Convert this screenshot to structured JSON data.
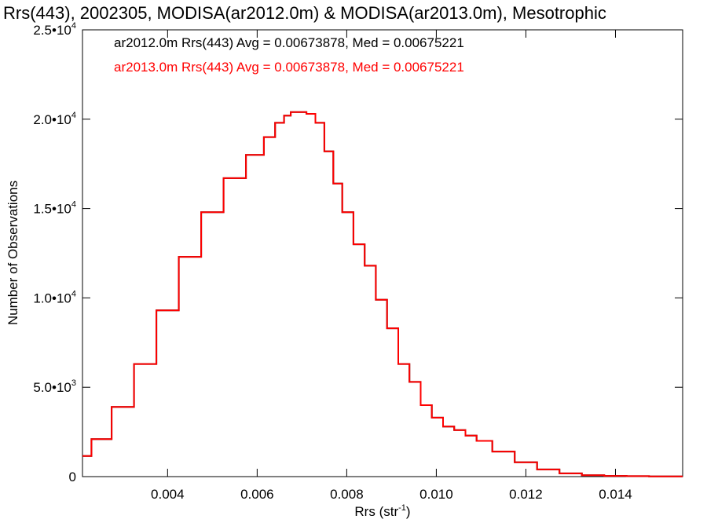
{
  "chart_data": {
    "type": "line",
    "title": "Rrs(443), 2002305, MODISA(ar2012.0m) & MODISA(ar2013.0m), Mesotrophic",
    "xlabel": {
      "base": "Rrs (str",
      "exp": "-1",
      "close": ")"
    },
    "ylabel": "Number of Observations",
    "xlim": [
      0.0021,
      0.0155
    ],
    "ylim": [
      0,
      25000
    ],
    "x_ticks": [
      {
        "value": 0.004,
        "label": "0.004"
      },
      {
        "value": 0.006,
        "label": "0.006"
      },
      {
        "value": 0.008,
        "label": "0.008"
      },
      {
        "value": 0.01,
        "label": "0.010"
      },
      {
        "value": 0.012,
        "label": "0.012"
      },
      {
        "value": 0.014,
        "label": "0.014"
      }
    ],
    "y_ticks": [
      {
        "value": 0,
        "mant": "0",
        "exp": ""
      },
      {
        "value": 5000,
        "mant": "5.0•10",
        "exp": "3"
      },
      {
        "value": 10000,
        "mant": "1.0•10",
        "exp": "4"
      },
      {
        "value": 15000,
        "mant": "1.5•10",
        "exp": "4"
      },
      {
        "value": 20000,
        "mant": "2.0•10",
        "exp": "4"
      },
      {
        "value": 25000,
        "mant": "2.5•10",
        "exp": "4"
      }
    ],
    "legend": [
      {
        "text": "ar2012.0m Rrs(443) Avg = 0.00673878, Med = 0.00675221",
        "color": "#000000"
      },
      {
        "text": "ar2013.0m Rrs(443) Avg = 0.00673878, Med = 0.00675221",
        "color": "#ff0000"
      }
    ],
    "series": [
      {
        "name": "ar2012.0m",
        "color": "#000000",
        "x": [
          0.0021,
          0.0025,
          0.003,
          0.0035,
          0.004,
          0.0045,
          0.005,
          0.0055,
          0.006,
          0.0063,
          0.0065,
          0.0067,
          0.0068,
          0.007,
          0.0072,
          0.0074,
          0.0076,
          0.0078,
          0.008,
          0.0083,
          0.0085,
          0.0088,
          0.009,
          0.0093,
          0.0095,
          0.0098,
          0.01,
          0.0103,
          0.0105,
          0.0108,
          0.011,
          0.0115,
          0.012,
          0.0125,
          0.013,
          0.0135,
          0.014,
          0.0145,
          0.015,
          0.0155
        ],
        "y": [
          1150,
          2100,
          3900,
          6300,
          9300,
          12300,
          14800,
          16700,
          18000,
          19000,
          19800,
          20200,
          20400,
          20400,
          20300,
          19800,
          18200,
          16400,
          14800,
          13000,
          11800,
          9900,
          8300,
          6300,
          5300,
          4000,
          3300,
          2800,
          2600,
          2300,
          2000,
          1400,
          800,
          400,
          180,
          80,
          40,
          25,
          15,
          10
        ]
      },
      {
        "name": "ar2013.0m",
        "color": "#ff0000",
        "x": [
          0.0021,
          0.0025,
          0.003,
          0.0035,
          0.004,
          0.0045,
          0.005,
          0.0055,
          0.006,
          0.0063,
          0.0065,
          0.0067,
          0.0068,
          0.007,
          0.0072,
          0.0074,
          0.0076,
          0.0078,
          0.008,
          0.0083,
          0.0085,
          0.0088,
          0.009,
          0.0093,
          0.0095,
          0.0098,
          0.01,
          0.0103,
          0.0105,
          0.0108,
          0.011,
          0.0115,
          0.012,
          0.0125,
          0.013,
          0.0135,
          0.014,
          0.0145,
          0.015,
          0.0155
        ],
        "y": [
          1150,
          2100,
          3900,
          6300,
          9300,
          12300,
          14800,
          16700,
          18000,
          19000,
          19800,
          20200,
          20400,
          20400,
          20300,
          19800,
          18200,
          16400,
          14800,
          13000,
          11800,
          9900,
          8300,
          6300,
          5300,
          4000,
          3300,
          2800,
          2600,
          2300,
          2000,
          1400,
          800,
          400,
          180,
          80,
          40,
          25,
          15,
          10
        ]
      }
    ]
  }
}
